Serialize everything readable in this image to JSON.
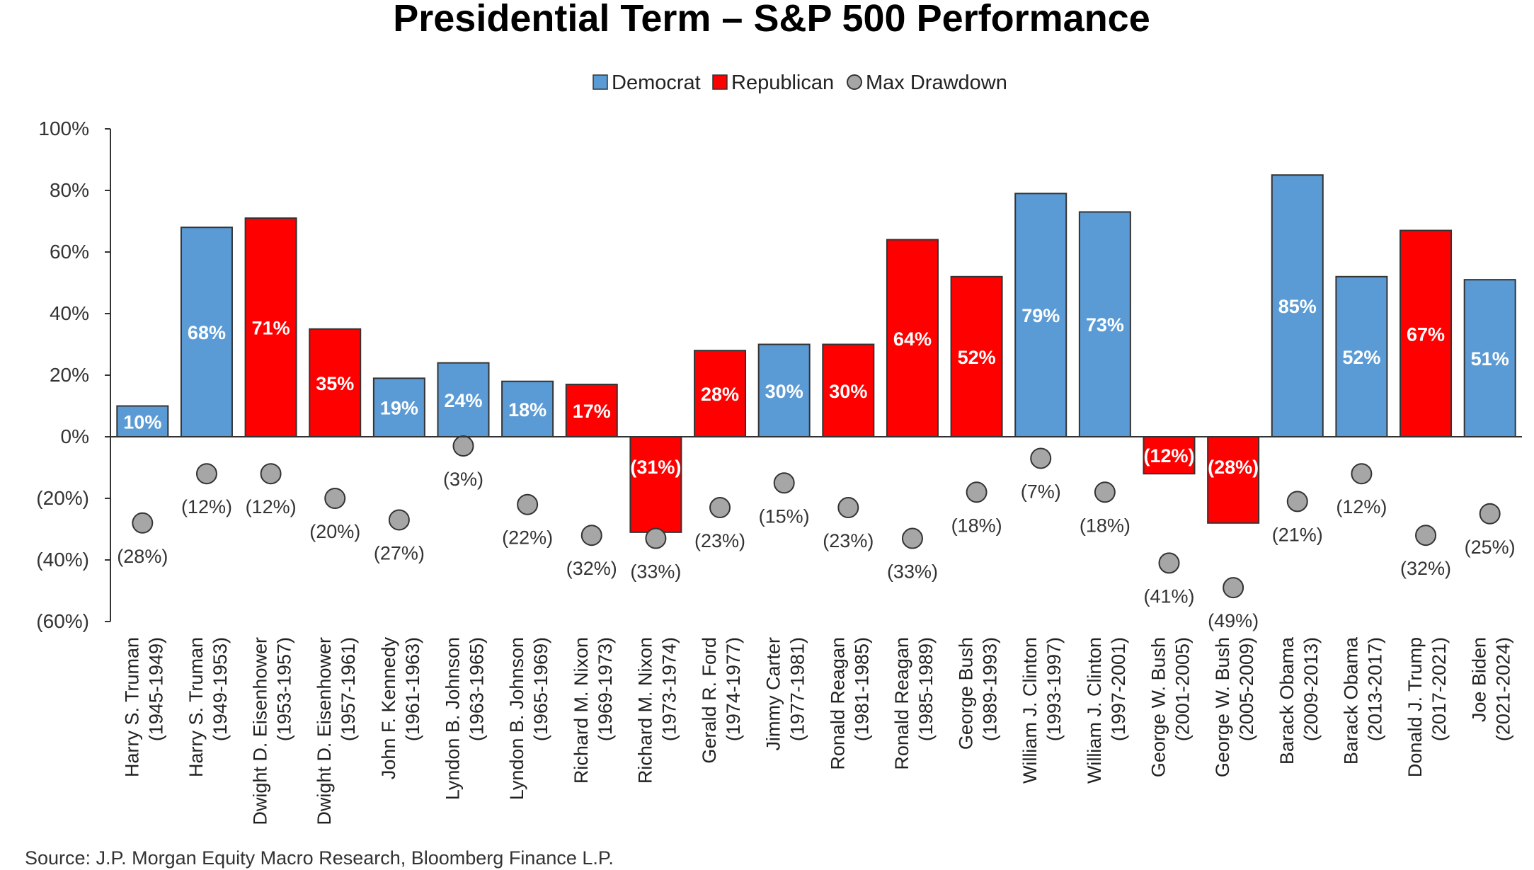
{
  "chart_data": {
    "type": "bar",
    "title": "Presidential Term – S&P 500 Performance",
    "source": "Source: J.P. Morgan Equity Macro Research, Bloomberg Finance L.P.",
    "ylim": [
      -60,
      100
    ],
    "yticks": [
      100,
      80,
      60,
      40,
      20,
      0,
      -20,
      -40,
      -60
    ],
    "ytick_labels": [
      "100%",
      "80%",
      "60%",
      "40%",
      "20%",
      "0%",
      "(20%)",
      "(40%)",
      "(60%)"
    ],
    "grid": false,
    "legend_position": "top-center",
    "legend": [
      {
        "label": "Democrat",
        "shape": "square",
        "color": "#5b9bd5"
      },
      {
        "label": "Republican",
        "shape": "square",
        "color": "#ff0000"
      },
      {
        "label": "Max Drawdown",
        "shape": "circle",
        "color": "#a6a6a6"
      }
    ],
    "categories": [
      {
        "name": "Harry S. Truman",
        "years": "(1945-1949)"
      },
      {
        "name": "Harry S. Truman",
        "years": "(1949-1953)"
      },
      {
        "name": "Dwight D. Eisenhower",
        "years": "(1953-1957)"
      },
      {
        "name": "Dwight D. Eisenhower",
        "years": "(1957-1961)"
      },
      {
        "name": "John F. Kennedy",
        "years": "(1961-1963)"
      },
      {
        "name": "Lyndon B. Johnson",
        "years": "(1963-1965)"
      },
      {
        "name": "Lyndon B. Johnson",
        "years": "(1965-1969)"
      },
      {
        "name": "Richard M. Nixon",
        "years": "(1969-1973)"
      },
      {
        "name": "Richard M. Nixon",
        "years": "(1973-1974)"
      },
      {
        "name": "Gerald R. Ford",
        "years": "(1974-1977)"
      },
      {
        "name": "Jimmy Carter",
        "years": "(1977-1981)"
      },
      {
        "name": "Ronald Reagan",
        "years": "(1981-1985)"
      },
      {
        "name": "Ronald Reagan",
        "years": "(1985-1989)"
      },
      {
        "name": "George Bush",
        "years": "(1989-1993)"
      },
      {
        "name": "William J. Clinton",
        "years": "(1993-1997)"
      },
      {
        "name": "William J. Clinton",
        "years": "(1997-2001)"
      },
      {
        "name": "George W. Bush",
        "years": "(2001-2005)"
      },
      {
        "name": "George W. Bush",
        "years": "(2005-2009)"
      },
      {
        "name": "Barack Obama",
        "years": "(2009-2013)"
      },
      {
        "name": "Barack Obama",
        "years": "(2013-2017)"
      },
      {
        "name": "Donald J. Trump",
        "years": "(2017-2021)"
      },
      {
        "name": "Joe Biden",
        "years": "(2021-2024)"
      }
    ],
    "parties": [
      "D",
      "D",
      "R",
      "R",
      "D",
      "D",
      "D",
      "R",
      "R",
      "R",
      "D",
      "R",
      "R",
      "R",
      "D",
      "D",
      "R",
      "R",
      "D",
      "D",
      "R",
      "D"
    ],
    "series": [
      {
        "name": "Performance",
        "type": "bar",
        "values": [
          10,
          68,
          71,
          35,
          19,
          24,
          18,
          17,
          -31,
          28,
          30,
          30,
          64,
          52,
          79,
          73,
          -12,
          -28,
          85,
          52,
          67,
          51
        ],
        "labels": [
          "10%",
          "68%",
          "71%",
          "35%",
          "19%",
          "24%",
          "18%",
          "17%",
          "(31%)",
          "28%",
          "30%",
          "30%",
          "64%",
          "52%",
          "79%",
          "73%",
          "(12%)",
          "(28%)",
          "85%",
          "52%",
          "67%",
          "51%"
        ]
      },
      {
        "name": "Max Drawdown",
        "type": "scatter",
        "values": [
          -28,
          -12,
          -12,
          -20,
          -27,
          -3,
          -22,
          -32,
          -33,
          -23,
          -15,
          -23,
          -33,
          -18,
          -7,
          -18,
          -41,
          -49,
          -21,
          -12,
          -32,
          -25
        ],
        "labels": [
          "(28%)",
          "(12%)",
          "(12%)",
          "(20%)",
          "(27%)",
          "(3%)",
          "(22%)",
          "(32%)",
          "(33%)",
          "(23%)",
          "(15%)",
          "(23%)",
          "(33%)",
          "(18%)",
          "(7%)",
          "(18%)",
          "(41%)",
          "(49%)",
          "(21%)",
          "(12%)",
          "(32%)",
          "(25%)"
        ]
      }
    ],
    "colors": {
      "democrat": "#5b9bd5",
      "republican": "#ff0000",
      "drawdown": "#a6a6a6",
      "axis": "#333333"
    }
  }
}
